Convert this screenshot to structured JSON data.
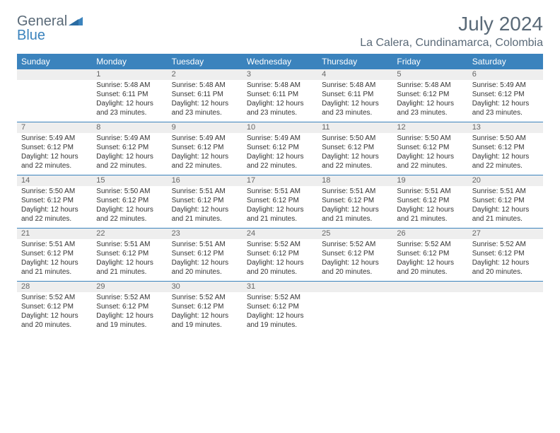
{
  "brand": {
    "part1": "General",
    "part2": "Blue"
  },
  "title": "July 2024",
  "location": "La Calera, Cundinamarca, Colombia",
  "colors": {
    "header_bg": "#3b83bd",
    "header_text": "#ffffff",
    "num_bg": "#eeeeee",
    "num_text": "#666666",
    "body_text": "#333333",
    "rule": "#3b83bd",
    "title_text": "#5a6a78",
    "page_bg": "#ffffff"
  },
  "fonts": {
    "title_size_pt": 21,
    "location_size_pt": 12,
    "day_header_size_pt": 9,
    "cell_size_pt": 7.5
  },
  "day_names": [
    "Sunday",
    "Monday",
    "Tuesday",
    "Wednesday",
    "Thursday",
    "Friday",
    "Saturday"
  ],
  "weeks": [
    {
      "nums": [
        "",
        "1",
        "2",
        "3",
        "4",
        "5",
        "6"
      ],
      "cells": [
        {
          "l1": "",
          "l2": "",
          "l3": "",
          "l4": ""
        },
        {
          "l1": "Sunrise: 5:48 AM",
          "l2": "Sunset: 6:11 PM",
          "l3": "Daylight: 12 hours",
          "l4": "and 23 minutes."
        },
        {
          "l1": "Sunrise: 5:48 AM",
          "l2": "Sunset: 6:11 PM",
          "l3": "Daylight: 12 hours",
          "l4": "and 23 minutes."
        },
        {
          "l1": "Sunrise: 5:48 AM",
          "l2": "Sunset: 6:11 PM",
          "l3": "Daylight: 12 hours",
          "l4": "and 23 minutes."
        },
        {
          "l1": "Sunrise: 5:48 AM",
          "l2": "Sunset: 6:11 PM",
          "l3": "Daylight: 12 hours",
          "l4": "and 23 minutes."
        },
        {
          "l1": "Sunrise: 5:48 AM",
          "l2": "Sunset: 6:12 PM",
          "l3": "Daylight: 12 hours",
          "l4": "and 23 minutes."
        },
        {
          "l1": "Sunrise: 5:49 AM",
          "l2": "Sunset: 6:12 PM",
          "l3": "Daylight: 12 hours",
          "l4": "and 23 minutes."
        }
      ]
    },
    {
      "nums": [
        "7",
        "8",
        "9",
        "10",
        "11",
        "12",
        "13"
      ],
      "cells": [
        {
          "l1": "Sunrise: 5:49 AM",
          "l2": "Sunset: 6:12 PM",
          "l3": "Daylight: 12 hours",
          "l4": "and 22 minutes."
        },
        {
          "l1": "Sunrise: 5:49 AM",
          "l2": "Sunset: 6:12 PM",
          "l3": "Daylight: 12 hours",
          "l4": "and 22 minutes."
        },
        {
          "l1": "Sunrise: 5:49 AM",
          "l2": "Sunset: 6:12 PM",
          "l3": "Daylight: 12 hours",
          "l4": "and 22 minutes."
        },
        {
          "l1": "Sunrise: 5:49 AM",
          "l2": "Sunset: 6:12 PM",
          "l3": "Daylight: 12 hours",
          "l4": "and 22 minutes."
        },
        {
          "l1": "Sunrise: 5:50 AM",
          "l2": "Sunset: 6:12 PM",
          "l3": "Daylight: 12 hours",
          "l4": "and 22 minutes."
        },
        {
          "l1": "Sunrise: 5:50 AM",
          "l2": "Sunset: 6:12 PM",
          "l3": "Daylight: 12 hours",
          "l4": "and 22 minutes."
        },
        {
          "l1": "Sunrise: 5:50 AM",
          "l2": "Sunset: 6:12 PM",
          "l3": "Daylight: 12 hours",
          "l4": "and 22 minutes."
        }
      ]
    },
    {
      "nums": [
        "14",
        "15",
        "16",
        "17",
        "18",
        "19",
        "20"
      ],
      "cells": [
        {
          "l1": "Sunrise: 5:50 AM",
          "l2": "Sunset: 6:12 PM",
          "l3": "Daylight: 12 hours",
          "l4": "and 22 minutes."
        },
        {
          "l1": "Sunrise: 5:50 AM",
          "l2": "Sunset: 6:12 PM",
          "l3": "Daylight: 12 hours",
          "l4": "and 22 minutes."
        },
        {
          "l1": "Sunrise: 5:51 AM",
          "l2": "Sunset: 6:12 PM",
          "l3": "Daylight: 12 hours",
          "l4": "and 21 minutes."
        },
        {
          "l1": "Sunrise: 5:51 AM",
          "l2": "Sunset: 6:12 PM",
          "l3": "Daylight: 12 hours",
          "l4": "and 21 minutes."
        },
        {
          "l1": "Sunrise: 5:51 AM",
          "l2": "Sunset: 6:12 PM",
          "l3": "Daylight: 12 hours",
          "l4": "and 21 minutes."
        },
        {
          "l1": "Sunrise: 5:51 AM",
          "l2": "Sunset: 6:12 PM",
          "l3": "Daylight: 12 hours",
          "l4": "and 21 minutes."
        },
        {
          "l1": "Sunrise: 5:51 AM",
          "l2": "Sunset: 6:12 PM",
          "l3": "Daylight: 12 hours",
          "l4": "and 21 minutes."
        }
      ]
    },
    {
      "nums": [
        "21",
        "22",
        "23",
        "24",
        "25",
        "26",
        "27"
      ],
      "cells": [
        {
          "l1": "Sunrise: 5:51 AM",
          "l2": "Sunset: 6:12 PM",
          "l3": "Daylight: 12 hours",
          "l4": "and 21 minutes."
        },
        {
          "l1": "Sunrise: 5:51 AM",
          "l2": "Sunset: 6:12 PM",
          "l3": "Daylight: 12 hours",
          "l4": "and 21 minutes."
        },
        {
          "l1": "Sunrise: 5:51 AM",
          "l2": "Sunset: 6:12 PM",
          "l3": "Daylight: 12 hours",
          "l4": "and 20 minutes."
        },
        {
          "l1": "Sunrise: 5:52 AM",
          "l2": "Sunset: 6:12 PM",
          "l3": "Daylight: 12 hours",
          "l4": "and 20 minutes."
        },
        {
          "l1": "Sunrise: 5:52 AM",
          "l2": "Sunset: 6:12 PM",
          "l3": "Daylight: 12 hours",
          "l4": "and 20 minutes."
        },
        {
          "l1": "Sunrise: 5:52 AM",
          "l2": "Sunset: 6:12 PM",
          "l3": "Daylight: 12 hours",
          "l4": "and 20 minutes."
        },
        {
          "l1": "Sunrise: 5:52 AM",
          "l2": "Sunset: 6:12 PM",
          "l3": "Daylight: 12 hours",
          "l4": "and 20 minutes."
        }
      ]
    },
    {
      "nums": [
        "28",
        "29",
        "30",
        "31",
        "",
        "",
        ""
      ],
      "cells": [
        {
          "l1": "Sunrise: 5:52 AM",
          "l2": "Sunset: 6:12 PM",
          "l3": "Daylight: 12 hours",
          "l4": "and 20 minutes."
        },
        {
          "l1": "Sunrise: 5:52 AM",
          "l2": "Sunset: 6:12 PM",
          "l3": "Daylight: 12 hours",
          "l4": "and 19 minutes."
        },
        {
          "l1": "Sunrise: 5:52 AM",
          "l2": "Sunset: 6:12 PM",
          "l3": "Daylight: 12 hours",
          "l4": "and 19 minutes."
        },
        {
          "l1": "Sunrise: 5:52 AM",
          "l2": "Sunset: 6:12 PM",
          "l3": "Daylight: 12 hours",
          "l4": "and 19 minutes."
        },
        {
          "l1": "",
          "l2": "",
          "l3": "",
          "l4": ""
        },
        {
          "l1": "",
          "l2": "",
          "l3": "",
          "l4": ""
        },
        {
          "l1": "",
          "l2": "",
          "l3": "",
          "l4": ""
        }
      ]
    }
  ]
}
